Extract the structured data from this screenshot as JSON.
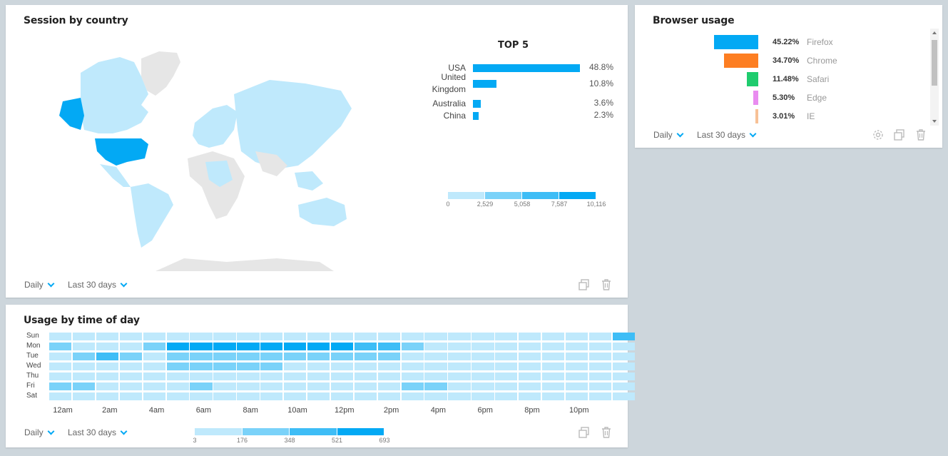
{
  "session_card": {
    "title": "Session by country",
    "top5_title": "TOP 5",
    "top5": [
      {
        "label": "USA",
        "value": 48.8,
        "display": "48.8%"
      },
      {
        "label": "United Kingdom",
        "value": 10.8,
        "display": "10.8%"
      },
      {
        "label": "Australia",
        "value": 3.6,
        "display": "3.6%"
      },
      {
        "label": "China",
        "value": 2.3,
        "display": "2.3%"
      }
    ],
    "legend_ticks": [
      "0",
      "2,529",
      "5,058",
      "7,587",
      "10,116"
    ],
    "legend_colors": [
      "#bfe9fc",
      "#7ad2f9",
      "#3ebdf6",
      "#03a9f4"
    ],
    "period": "Daily",
    "range": "Last 30 days"
  },
  "browser_card": {
    "title": "Browser usage",
    "items": [
      {
        "name": "Firefox",
        "value": 45.22,
        "pct": "45.22%",
        "color": "#03a9f4"
      },
      {
        "name": "Chrome",
        "value": 34.7,
        "pct": "34.70%",
        "color": "#fd7e22"
      },
      {
        "name": "Safari",
        "value": 11.48,
        "pct": "11.48%",
        "color": "#1fcc6e"
      },
      {
        "name": "Edge",
        "value": 5.3,
        "pct": "5.30%",
        "color": "#e98cf0"
      },
      {
        "name": "IE",
        "value": 3.01,
        "pct": "3.01%",
        "color": "#f7c196"
      }
    ],
    "period": "Daily",
    "range": "Last 30 days"
  },
  "usage_card": {
    "title": "Usage by time of day",
    "days": [
      "Sun",
      "Mon",
      "Tue",
      "Wed",
      "Thu",
      "Fri",
      "Sat"
    ],
    "hour_labels": [
      "12am",
      "2am",
      "4am",
      "6am",
      "8am",
      "10am",
      "12pm",
      "2pm",
      "4pm",
      "6pm",
      "8pm",
      "10pm"
    ],
    "levels_colors": [
      "#bfe9fc",
      "#7ad2f9",
      "#3ebdf6",
      "#03a9f4"
    ],
    "grid": [
      [
        0,
        0,
        0,
        0,
        0,
        0,
        0,
        0,
        0,
        0,
        0,
        0,
        0,
        0,
        0,
        0,
        0,
        0,
        0,
        0,
        0,
        0,
        0,
        0,
        2
      ],
      [
        1,
        0,
        0,
        0,
        1,
        3,
        3,
        3,
        3,
        3,
        3,
        3,
        3,
        2,
        2,
        1,
        0,
        0,
        0,
        0,
        0,
        0,
        0,
        0,
        0
      ],
      [
        0,
        1,
        2,
        1,
        0,
        1,
        1,
        1,
        1,
        1,
        1,
        1,
        1,
        1,
        1,
        0,
        0,
        0,
        0,
        0,
        0,
        0,
        0,
        0,
        0
      ],
      [
        0,
        0,
        0,
        0,
        0,
        1,
        1,
        1,
        1,
        1,
        0,
        0,
        0,
        0,
        0,
        0,
        0,
        0,
        0,
        0,
        0,
        0,
        0,
        0,
        0
      ],
      [
        0,
        0,
        0,
        0,
        0,
        0,
        0,
        0,
        0,
        0,
        0,
        0,
        0,
        0,
        0,
        0,
        0,
        0,
        0,
        0,
        0,
        0,
        0,
        0,
        0
      ],
      [
        1,
        1,
        0,
        0,
        0,
        0,
        1,
        0,
        0,
        0,
        0,
        0,
        0,
        0,
        0,
        1,
        1,
        0,
        0,
        0,
        0,
        0,
        0,
        0,
        0
      ],
      [
        0,
        0,
        0,
        0,
        0,
        0,
        0,
        0,
        0,
        0,
        0,
        0,
        0,
        0,
        0,
        0,
        0,
        0,
        0,
        0,
        0,
        0,
        0,
        0,
        0
      ]
    ],
    "legend_ticks": [
      "3",
      "176",
      "348",
      "521",
      "693"
    ],
    "period": "Daily",
    "range": "Last 30 days"
  }
}
